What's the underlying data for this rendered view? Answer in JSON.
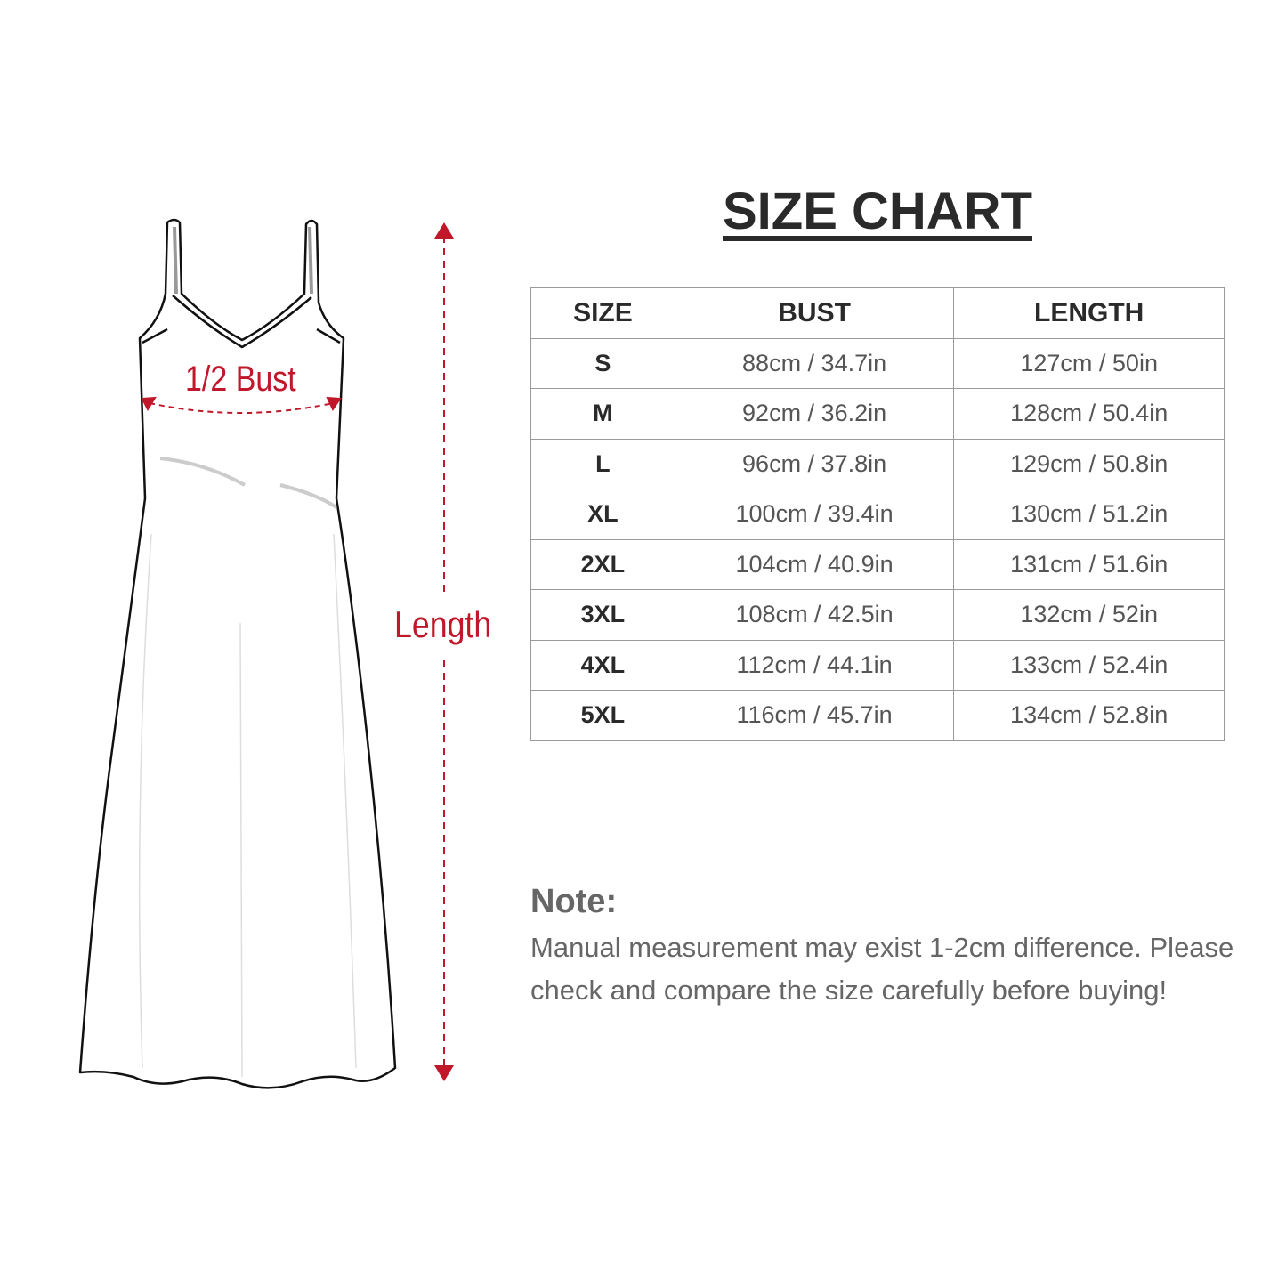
{
  "diagram": {
    "bust_label": "1/2 Bust",
    "length_label": "Length",
    "accent_color": "#c0182a"
  },
  "title": "SIZE CHART",
  "table": {
    "headers": [
      "SIZE",
      "BUST",
      "LENGTH"
    ],
    "rows": [
      [
        "S",
        "88cm / 34.7in",
        "127cm / 50in"
      ],
      [
        "M",
        "92cm / 36.2in",
        "128cm / 50.4in"
      ],
      [
        "L",
        "96cm / 37.8in",
        "129cm / 50.8in"
      ],
      [
        "XL",
        "100cm / 39.4in",
        "130cm / 51.2in"
      ],
      [
        "2XL",
        "104cm / 40.9in",
        "131cm / 51.6in"
      ],
      [
        "3XL",
        "108cm / 42.5in",
        "132cm / 52in"
      ],
      [
        "4XL",
        "112cm / 44.1in",
        "133cm / 52.4in"
      ],
      [
        "5XL",
        "116cm / 45.7in",
        "134cm / 52.8in"
      ]
    ]
  },
  "note": {
    "title": "Note:",
    "text": "Manual measurement may exist 1-2cm difference. Please check and compare the size carefully before buying!"
  }
}
